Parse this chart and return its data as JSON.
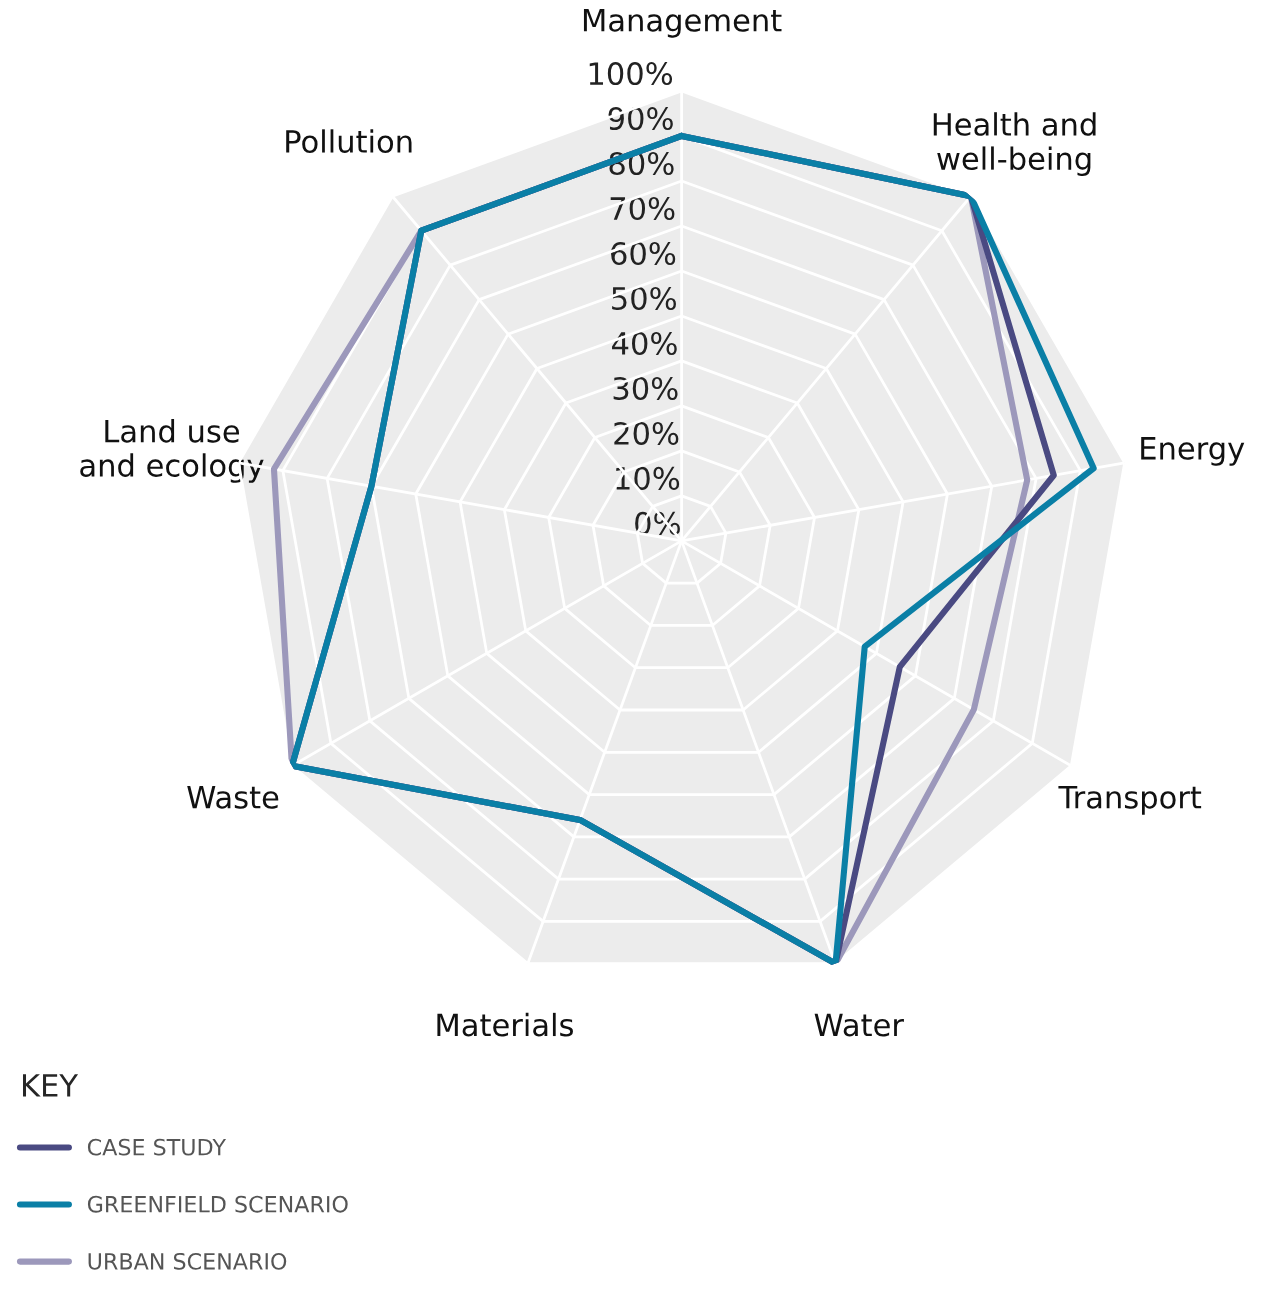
{
  "chart_data": {
    "type": "radar",
    "categories": [
      "Management",
      "Health and\nwell-being",
      "Energy",
      "Transport",
      "Water",
      "Materials",
      "Waste",
      "Land use\nand ecology",
      "Pollution"
    ],
    "series": [
      {
        "name": "CASE STUDY",
        "color": "#4a4a82",
        "values": [
          90,
          100,
          84,
          56,
          100,
          66,
          100,
          70,
          90
        ]
      },
      {
        "name": "GREENFIELD SCENARIO",
        "color": "#0a7fa6",
        "values": [
          90,
          100,
          93,
          47,
          100,
          66,
          100,
          70,
          90
        ]
      },
      {
        "name": "URBAN SCENARIO",
        "color": "#9c98bb",
        "values": [
          90,
          100,
          78,
          75,
          100,
          66,
          100,
          92,
          90
        ]
      }
    ],
    "legend_title": "KEY",
    "legend": "bottom left",
    "ylim": [
      0,
      100
    ],
    "yticks": [
      {
        "value": 0,
        "label": "0%"
      },
      {
        "value": 10,
        "label": "10%"
      },
      {
        "value": 20,
        "label": "20%"
      },
      {
        "value": 30,
        "label": "30%"
      },
      {
        "value": 40,
        "label": "40%"
      },
      {
        "value": 50,
        "label": "50%"
      },
      {
        "value": 60,
        "label": "60%"
      },
      {
        "value": 70,
        "label": "70%"
      },
      {
        "value": 80,
        "label": "80%"
      },
      {
        "value": 90,
        "label": "90%"
      },
      {
        "value": 100,
        "label": "100%"
      }
    ],
    "grid": true,
    "line_style": "solid",
    "marker": "none"
  }
}
